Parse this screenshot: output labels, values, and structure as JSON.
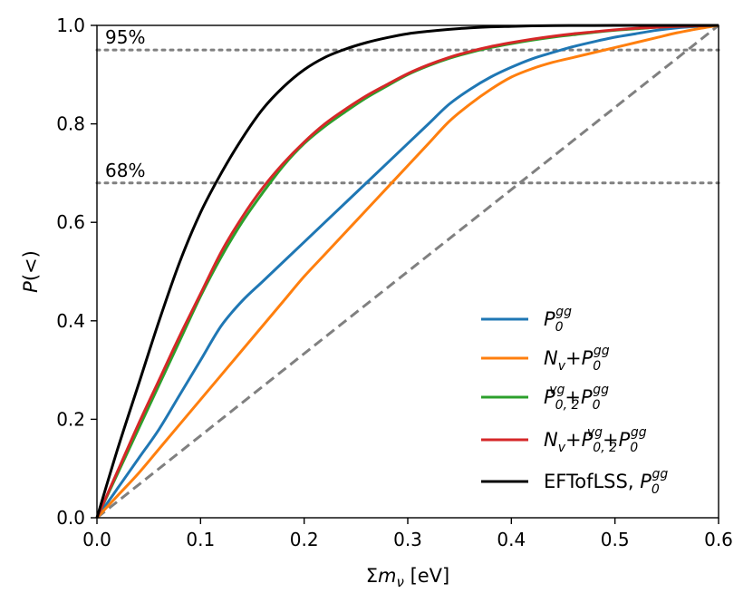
{
  "chart_data": {
    "type": "line",
    "xlabel": {
      "base": "Σ",
      "italic": "m",
      "sub": "ν",
      "tail": " [eV]"
    },
    "ylabel": {
      "italic": "P",
      "tail": "(<)"
    },
    "xlim": [
      0.0,
      0.6
    ],
    "ylim": [
      0.0,
      1.0
    ],
    "xticks": [
      "0.0",
      "0.1",
      "0.2",
      "0.3",
      "0.4",
      "0.5",
      "0.6"
    ],
    "yticks": [
      "0.0",
      "0.2",
      "0.4",
      "0.6",
      "0.8",
      "1.0"
    ],
    "reference_lines": [
      {
        "y": 0.95,
        "label": "95%",
        "color": "#808080"
      },
      {
        "y": 0.68,
        "label": "68%",
        "color": "#808080"
      }
    ],
    "diagonal": {
      "x": [
        0.0,
        0.6
      ],
      "y": [
        0.0,
        1.0
      ],
      "color": "#808080"
    },
    "series": [
      {
        "name": "P0gg",
        "legend_parts": [
          {
            "t": "P",
            "italic": true
          },
          {
            "t": "0",
            "sub": true
          },
          {
            "t": "gg",
            "sup": true
          }
        ],
        "color": "#1f77b4",
        "x": [
          0,
          0.02,
          0.04,
          0.06,
          0.08,
          0.1,
          0.12,
          0.14,
          0.16,
          0.18,
          0.2,
          0.22,
          0.24,
          0.26,
          0.28,
          0.3,
          0.32,
          0.34,
          0.36,
          0.38,
          0.4,
          0.42,
          0.44,
          0.46,
          0.48,
          0.5,
          0.52,
          0.54,
          0.56,
          0.58,
          0.6
        ],
        "y": [
          0,
          0.06,
          0.12,
          0.18,
          0.25,
          0.32,
          0.39,
          0.44,
          0.48,
          0.52,
          0.56,
          0.6,
          0.64,
          0.68,
          0.72,
          0.76,
          0.8,
          0.84,
          0.87,
          0.895,
          0.915,
          0.932,
          0.945,
          0.957,
          0.967,
          0.976,
          0.983,
          0.99,
          0.995,
          0.998,
          1.0
        ]
      },
      {
        "name": "Nv+P0gg",
        "legend_parts": [
          {
            "t": "N",
            "italic": true
          },
          {
            "t": "v",
            "sub": true
          },
          {
            "t": "+"
          },
          {
            "t": "P",
            "italic": true
          },
          {
            "t": "0",
            "sub": true
          },
          {
            "t": "gg",
            "sup": true
          }
        ],
        "color": "#ff7f0e",
        "x": [
          0,
          0.02,
          0.04,
          0.06,
          0.08,
          0.1,
          0.12,
          0.14,
          0.16,
          0.18,
          0.2,
          0.22,
          0.24,
          0.26,
          0.28,
          0.3,
          0.32,
          0.34,
          0.36,
          0.38,
          0.4,
          0.42,
          0.44,
          0.46,
          0.48,
          0.5,
          0.52,
          0.54,
          0.56,
          0.58,
          0.6
        ],
        "y": [
          0,
          0.045,
          0.09,
          0.14,
          0.19,
          0.24,
          0.29,
          0.34,
          0.39,
          0.44,
          0.49,
          0.535,
          0.58,
          0.625,
          0.67,
          0.715,
          0.76,
          0.805,
          0.84,
          0.87,
          0.895,
          0.912,
          0.925,
          0.935,
          0.945,
          0.955,
          0.965,
          0.975,
          0.985,
          0.993,
          1.0
        ]
      },
      {
        "name": "P0,2vg+P0gg",
        "legend_parts": [
          {
            "t": "P",
            "italic": true
          },
          {
            "t": "0, 2",
            "sub": true
          },
          {
            "t": "vg",
            "sup": true
          },
          {
            "t": "+"
          },
          {
            "t": "P",
            "italic": true
          },
          {
            "t": "0",
            "sub": true
          },
          {
            "t": "gg",
            "sup": true
          }
        ],
        "color": "#2ca02c",
        "x": [
          0,
          0.02,
          0.04,
          0.06,
          0.08,
          0.1,
          0.12,
          0.14,
          0.16,
          0.18,
          0.2,
          0.22,
          0.24,
          0.26,
          0.28,
          0.3,
          0.32,
          0.34,
          0.36,
          0.38,
          0.4,
          0.42,
          0.44,
          0.46,
          0.48,
          0.5,
          0.52,
          0.54,
          0.56,
          0.58,
          0.6
        ],
        "y": [
          0,
          0.09,
          0.18,
          0.27,
          0.36,
          0.45,
          0.53,
          0.6,
          0.66,
          0.715,
          0.76,
          0.795,
          0.825,
          0.853,
          0.877,
          0.9,
          0.918,
          0.933,
          0.945,
          0.955,
          0.963,
          0.97,
          0.976,
          0.981,
          0.986,
          0.99,
          0.993,
          0.996,
          0.998,
          0.999,
          1.0
        ]
      },
      {
        "name": "Nv+P0,2vg+P0gg",
        "legend_parts": [
          {
            "t": "N",
            "italic": true
          },
          {
            "t": "v",
            "sub": true
          },
          {
            "t": "+"
          },
          {
            "t": "P",
            "italic": true
          },
          {
            "t": "0, 2",
            "sub": true
          },
          {
            "t": "vg",
            "sup": true
          },
          {
            "t": "+"
          },
          {
            "t": "P",
            "italic": true
          },
          {
            "t": "0",
            "sub": true
          },
          {
            "t": "gg",
            "sup": true
          }
        ],
        "color": "#d62728",
        "x": [
          0,
          0.02,
          0.04,
          0.06,
          0.08,
          0.1,
          0.12,
          0.14,
          0.16,
          0.18,
          0.2,
          0.22,
          0.24,
          0.26,
          0.28,
          0.3,
          0.32,
          0.34,
          0.36,
          0.38,
          0.4,
          0.42,
          0.44,
          0.46,
          0.48,
          0.5,
          0.52,
          0.54,
          0.56,
          0.58,
          0.6
        ],
        "y": [
          0,
          0.095,
          0.19,
          0.28,
          0.37,
          0.455,
          0.54,
          0.61,
          0.67,
          0.72,
          0.763,
          0.8,
          0.83,
          0.857,
          0.88,
          0.902,
          0.92,
          0.935,
          0.947,
          0.957,
          0.965,
          0.972,
          0.978,
          0.983,
          0.987,
          0.991,
          0.994,
          0.996,
          0.998,
          0.999,
          1.0
        ]
      },
      {
        "name": "EFTofLSS, P0gg",
        "legend_parts": [
          {
            "t": "EFTofLSS, "
          },
          {
            "t": "P",
            "italic": true
          },
          {
            "t": "0",
            "sub": true
          },
          {
            "t": "gg",
            "sup": true
          }
        ],
        "color": "#000000",
        "x": [
          0,
          0.02,
          0.04,
          0.06,
          0.08,
          0.1,
          0.12,
          0.14,
          0.16,
          0.18,
          0.2,
          0.22,
          0.24,
          0.26,
          0.28,
          0.3,
          0.32,
          0.34,
          0.36,
          0.38,
          0.4,
          0.42,
          0.44,
          0.46,
          0.48,
          0.5,
          0.52,
          0.54,
          0.56,
          0.58,
          0.6
        ],
        "y": [
          0,
          0.14,
          0.27,
          0.4,
          0.52,
          0.62,
          0.7,
          0.77,
          0.83,
          0.875,
          0.91,
          0.935,
          0.952,
          0.965,
          0.975,
          0.983,
          0.988,
          0.992,
          0.995,
          0.997,
          0.998,
          0.999,
          0.9995,
          0.9997,
          0.9998,
          0.9999,
          1.0,
          1.0,
          1.0,
          1.0,
          1.0
        ]
      }
    ]
  }
}
